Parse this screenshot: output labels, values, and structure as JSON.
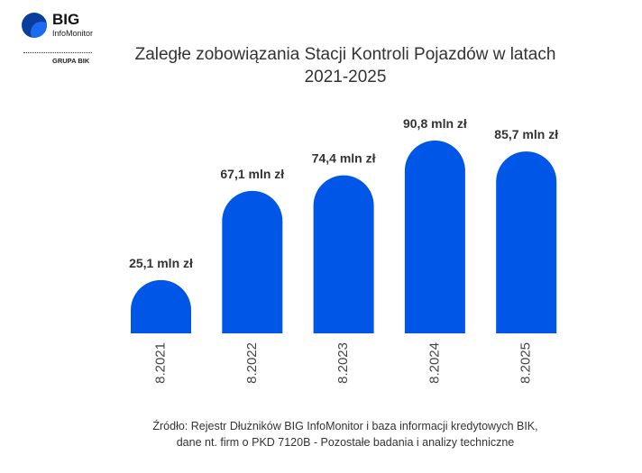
{
  "logo": {
    "brand": "BIG",
    "sub": "InfoMonitor",
    "group": "GRUPA BIK"
  },
  "chart_data": {
    "type": "bar",
    "title_line1": "Zaległe zobowiązania Stacji Kontroli Pojazdów w latach",
    "title_line2": "2021-2025",
    "categories": [
      "8.2021",
      "8.2022",
      "8.2023",
      "8.2024",
      "8.2025"
    ],
    "values": [
      25.1,
      67.1,
      74.4,
      90.8,
      85.7
    ],
    "data_labels": [
      "25,1 mln zł",
      "67,1 mln zł",
      "74,4 mln zł",
      "90,8 mln zł",
      "85,7 mln zł"
    ],
    "unit": "mln zł",
    "xlabel": "",
    "ylabel": "",
    "ylim": [
      0,
      90.8
    ],
    "bar_color": "#0057e7",
    "grid": false
  },
  "source": {
    "line1": "Źródło: Rejestr Dłużników BIG InfoMonitor i baza informacji kredytowych BIK,",
    "line2": "dane nt. firm o PKD 7120B - Pozostałe badania i analizy techniczne"
  }
}
